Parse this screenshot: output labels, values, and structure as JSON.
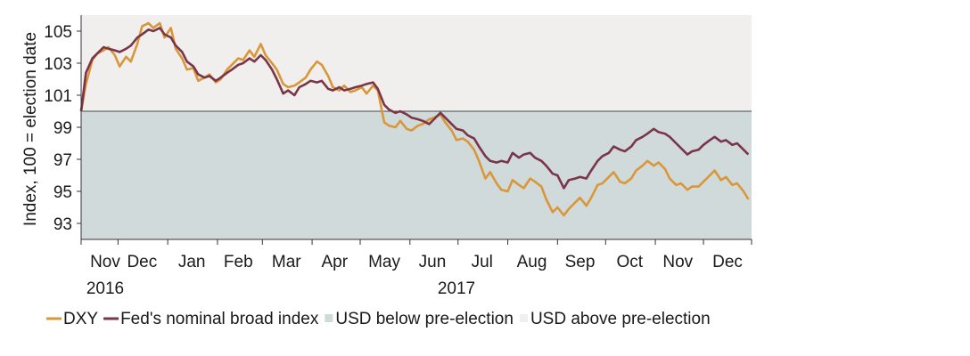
{
  "chart_data": {
    "type": "line",
    "ylabel": "Index, 100 = election date",
    "ylim": [
      92,
      106
    ],
    "yticks": [
      93,
      95,
      97,
      99,
      101,
      103,
      105
    ],
    "xlim": [
      "2016-11-08",
      "2017-12-31"
    ],
    "x_month_labels": [
      {
        "label": "Nov",
        "date": "2016-11-23"
      },
      {
        "label": "Dec",
        "date": "2016-12-16"
      },
      {
        "label": "Jan",
        "date": "2017-01-16"
      },
      {
        "label": "Feb",
        "date": "2017-02-14"
      },
      {
        "label": "Mar",
        "date": "2017-03-16"
      },
      {
        "label": "Apr",
        "date": "2017-04-15"
      },
      {
        "label": "May",
        "date": "2017-05-16"
      },
      {
        "label": "Jun",
        "date": "2017-06-15"
      },
      {
        "label": "Jul",
        "date": "2017-07-16"
      },
      {
        "label": "Aug",
        "date": "2017-08-16"
      },
      {
        "label": "Sep",
        "date": "2017-09-15"
      },
      {
        "label": "Oct",
        "date": "2017-10-16"
      },
      {
        "label": "Nov",
        "date": "2017-11-15"
      },
      {
        "label": "Dec",
        "date": "2017-12-16"
      }
    ],
    "x_year_labels": [
      {
        "label": "2016",
        "date": "2016-11-23"
      },
      {
        "label": "2017",
        "date": "2017-06-30"
      }
    ],
    "x_ticks": [
      "2016-11-08",
      "2016-12-01",
      "2017-01-01",
      "2017-02-01",
      "2017-03-01",
      "2017-04-01",
      "2017-05-01",
      "2017-06-01",
      "2017-07-01",
      "2017-08-01",
      "2017-09-01",
      "2017-10-01",
      "2017-11-01",
      "2017-12-01",
      "2017-12-31"
    ],
    "shading": [
      {
        "name": "USD below pre-election",
        "from": 92,
        "to": 100,
        "color": "#d0dadb"
      },
      {
        "name": "USD above pre-election",
        "from": 100,
        "to": 106,
        "color": "#f0efed"
      }
    ],
    "series": [
      {
        "name": "DXY",
        "color": "#d9973a",
        "points": [
          [
            "2016-11-08",
            100.0
          ],
          [
            "2016-11-11",
            101.7
          ],
          [
            "2016-11-15",
            103.2
          ],
          [
            "2016-11-18",
            103.6
          ],
          [
            "2016-11-22",
            103.8
          ],
          [
            "2016-11-25",
            104.0
          ],
          [
            "2016-11-29",
            103.5
          ],
          [
            "2016-12-02",
            102.8
          ],
          [
            "2016-12-06",
            103.4
          ],
          [
            "2016-12-09",
            103.1
          ],
          [
            "2016-12-13",
            104.2
          ],
          [
            "2016-12-16",
            105.3
          ],
          [
            "2016-12-20",
            105.5
          ],
          [
            "2016-12-23",
            105.2
          ],
          [
            "2016-12-27",
            105.5
          ],
          [
            "2016-12-30",
            104.6
          ],
          [
            "2017-01-03",
            105.2
          ],
          [
            "2017-01-06",
            103.9
          ],
          [
            "2017-01-10",
            103.3
          ],
          [
            "2017-01-13",
            102.6
          ],
          [
            "2017-01-17",
            102.7
          ],
          [
            "2017-01-20",
            101.9
          ],
          [
            "2017-01-24",
            102.1
          ],
          [
            "2017-01-27",
            102.3
          ],
          [
            "2017-01-31",
            101.8
          ],
          [
            "2017-02-03",
            102.0
          ],
          [
            "2017-02-07",
            102.6
          ],
          [
            "2017-02-10",
            102.9
          ],
          [
            "2017-02-14",
            103.3
          ],
          [
            "2017-02-17",
            103.2
          ],
          [
            "2017-02-21",
            103.8
          ],
          [
            "2017-02-24",
            103.4
          ],
          [
            "2017-02-28",
            104.2
          ],
          [
            "2017-03-03",
            103.5
          ],
          [
            "2017-03-07",
            103.0
          ],
          [
            "2017-03-10",
            102.6
          ],
          [
            "2017-03-14",
            101.7
          ],
          [
            "2017-03-17",
            101.5
          ],
          [
            "2017-03-21",
            101.6
          ],
          [
            "2017-03-24",
            101.8
          ],
          [
            "2017-03-28",
            102.1
          ],
          [
            "2017-03-31",
            102.6
          ],
          [
            "2017-04-04",
            103.1
          ],
          [
            "2017-04-07",
            102.9
          ],
          [
            "2017-04-11",
            102.2
          ],
          [
            "2017-04-14",
            101.5
          ],
          [
            "2017-04-18",
            101.3
          ],
          [
            "2017-04-21",
            101.6
          ],
          [
            "2017-04-25",
            101.2
          ],
          [
            "2017-04-28",
            101.3
          ],
          [
            "2017-05-02",
            101.5
          ],
          [
            "2017-05-05",
            101.1
          ],
          [
            "2017-05-09",
            101.6
          ],
          [
            "2017-05-12",
            101.3
          ],
          [
            "2017-05-16",
            99.3
          ],
          [
            "2017-05-19",
            99.1
          ],
          [
            "2017-05-23",
            99.0
          ],
          [
            "2017-05-26",
            99.4
          ],
          [
            "2017-05-30",
            98.9
          ],
          [
            "2017-06-02",
            98.8
          ],
          [
            "2017-06-06",
            99.1
          ],
          [
            "2017-06-09",
            99.2
          ],
          [
            "2017-06-13",
            99.5
          ],
          [
            "2017-06-16",
            99.6
          ],
          [
            "2017-06-20",
            99.8
          ],
          [
            "2017-06-23",
            99.3
          ],
          [
            "2017-06-27",
            98.8
          ],
          [
            "2017-06-30",
            98.2
          ],
          [
            "2017-07-04",
            98.3
          ],
          [
            "2017-07-07",
            98.1
          ],
          [
            "2017-07-11",
            97.6
          ],
          [
            "2017-07-14",
            96.9
          ],
          [
            "2017-07-18",
            95.8
          ],
          [
            "2017-07-21",
            96.2
          ],
          [
            "2017-07-25",
            95.5
          ],
          [
            "2017-07-28",
            95.1
          ],
          [
            "2017-08-01",
            95.0
          ],
          [
            "2017-08-04",
            95.7
          ],
          [
            "2017-08-08",
            95.4
          ],
          [
            "2017-08-11",
            95.2
          ],
          [
            "2017-08-15",
            95.8
          ],
          [
            "2017-08-18",
            95.6
          ],
          [
            "2017-08-22",
            95.3
          ],
          [
            "2017-08-25",
            94.5
          ],
          [
            "2017-08-29",
            93.7
          ],
          [
            "2017-09-01",
            94.0
          ],
          [
            "2017-09-05",
            93.5
          ],
          [
            "2017-09-08",
            93.9
          ],
          [
            "2017-09-12",
            94.3
          ],
          [
            "2017-09-15",
            94.6
          ],
          [
            "2017-09-19",
            94.1
          ],
          [
            "2017-09-22",
            94.6
          ],
          [
            "2017-09-26",
            95.4
          ],
          [
            "2017-09-29",
            95.5
          ],
          [
            "2017-10-03",
            95.9
          ],
          [
            "2017-10-06",
            96.2
          ],
          [
            "2017-10-10",
            95.6
          ],
          [
            "2017-10-13",
            95.5
          ],
          [
            "2017-10-17",
            95.8
          ],
          [
            "2017-10-20",
            96.3
          ],
          [
            "2017-10-24",
            96.6
          ],
          [
            "2017-10-27",
            96.9
          ],
          [
            "2017-10-31",
            96.6
          ],
          [
            "2017-11-03",
            96.8
          ],
          [
            "2017-11-07",
            96.4
          ],
          [
            "2017-11-10",
            95.8
          ],
          [
            "2017-11-14",
            95.4
          ],
          [
            "2017-11-17",
            95.5
          ],
          [
            "2017-11-21",
            95.1
          ],
          [
            "2017-11-24",
            95.3
          ],
          [
            "2017-11-28",
            95.3
          ],
          [
            "2017-12-01",
            95.6
          ],
          [
            "2017-12-05",
            96.0
          ],
          [
            "2017-12-08",
            96.3
          ],
          [
            "2017-12-12",
            95.7
          ],
          [
            "2017-12-15",
            95.9
          ],
          [
            "2017-12-19",
            95.4
          ],
          [
            "2017-12-22",
            95.5
          ],
          [
            "2017-12-26",
            95.0
          ],
          [
            "2017-12-29",
            94.5
          ]
        ]
      },
      {
        "name": "Fed's nominal broad index",
        "color": "#7a3549",
        "points": [
          [
            "2016-11-08",
            100.0
          ],
          [
            "2016-11-11",
            102.4
          ],
          [
            "2016-11-15",
            103.3
          ],
          [
            "2016-11-18",
            103.6
          ],
          [
            "2016-11-22",
            104.0
          ],
          [
            "2016-11-25",
            103.9
          ],
          [
            "2016-11-29",
            103.8
          ],
          [
            "2016-12-02",
            103.7
          ],
          [
            "2016-12-06",
            103.9
          ],
          [
            "2016-12-09",
            104.1
          ],
          [
            "2016-12-13",
            104.6
          ],
          [
            "2016-12-16",
            104.8
          ],
          [
            "2016-12-20",
            105.1
          ],
          [
            "2016-12-23",
            105.0
          ],
          [
            "2016-12-27",
            105.2
          ],
          [
            "2016-12-30",
            104.8
          ],
          [
            "2017-01-03",
            104.6
          ],
          [
            "2017-01-06",
            104.1
          ],
          [
            "2017-01-10",
            103.7
          ],
          [
            "2017-01-13",
            103.1
          ],
          [
            "2017-01-17",
            102.8
          ],
          [
            "2017-01-20",
            102.3
          ],
          [
            "2017-01-24",
            102.1
          ],
          [
            "2017-01-27",
            102.2
          ],
          [
            "2017-01-31",
            101.9
          ],
          [
            "2017-02-03",
            102.1
          ],
          [
            "2017-02-07",
            102.4
          ],
          [
            "2017-02-10",
            102.6
          ],
          [
            "2017-02-14",
            102.9
          ],
          [
            "2017-02-17",
            103.0
          ],
          [
            "2017-02-21",
            103.3
          ],
          [
            "2017-02-24",
            103.1
          ],
          [
            "2017-02-28",
            103.5
          ],
          [
            "2017-03-03",
            103.2
          ],
          [
            "2017-03-07",
            102.6
          ],
          [
            "2017-03-10",
            102.0
          ],
          [
            "2017-03-14",
            101.1
          ],
          [
            "2017-03-17",
            101.3
          ],
          [
            "2017-03-21",
            101.0
          ],
          [
            "2017-03-24",
            101.5
          ],
          [
            "2017-03-28",
            101.7
          ],
          [
            "2017-03-31",
            101.9
          ],
          [
            "2017-04-04",
            101.8
          ],
          [
            "2017-04-07",
            101.9
          ],
          [
            "2017-04-11",
            101.4
          ],
          [
            "2017-04-14",
            101.3
          ],
          [
            "2017-04-18",
            101.5
          ],
          [
            "2017-04-21",
            101.3
          ],
          [
            "2017-04-25",
            101.4
          ],
          [
            "2017-04-28",
            101.5
          ],
          [
            "2017-05-02",
            101.6
          ],
          [
            "2017-05-05",
            101.7
          ],
          [
            "2017-05-09",
            101.8
          ],
          [
            "2017-05-12",
            101.4
          ],
          [
            "2017-05-16",
            100.4
          ],
          [
            "2017-05-19",
            100.1
          ],
          [
            "2017-05-23",
            99.9
          ],
          [
            "2017-05-26",
            100.0
          ],
          [
            "2017-05-30",
            99.8
          ],
          [
            "2017-06-02",
            99.6
          ],
          [
            "2017-06-06",
            99.5
          ],
          [
            "2017-06-09",
            99.4
          ],
          [
            "2017-06-13",
            99.2
          ],
          [
            "2017-06-16",
            99.5
          ],
          [
            "2017-06-20",
            99.9
          ],
          [
            "2017-06-23",
            99.6
          ],
          [
            "2017-06-27",
            99.2
          ],
          [
            "2017-06-30",
            98.9
          ],
          [
            "2017-07-04",
            98.8
          ],
          [
            "2017-07-07",
            98.5
          ],
          [
            "2017-07-11",
            98.3
          ],
          [
            "2017-07-14",
            97.8
          ],
          [
            "2017-07-18",
            97.2
          ],
          [
            "2017-07-21",
            96.9
          ],
          [
            "2017-07-25",
            96.8
          ],
          [
            "2017-07-28",
            96.9
          ],
          [
            "2017-08-01",
            96.8
          ],
          [
            "2017-08-04",
            97.4
          ],
          [
            "2017-08-08",
            97.1
          ],
          [
            "2017-08-11",
            97.3
          ],
          [
            "2017-08-15",
            97.4
          ],
          [
            "2017-08-18",
            97.1
          ],
          [
            "2017-08-22",
            96.9
          ],
          [
            "2017-08-25",
            96.6
          ],
          [
            "2017-08-29",
            96.1
          ],
          [
            "2017-09-01",
            96.0
          ],
          [
            "2017-09-05",
            95.2
          ],
          [
            "2017-09-08",
            95.7
          ],
          [
            "2017-09-12",
            95.8
          ],
          [
            "2017-09-15",
            95.9
          ],
          [
            "2017-09-19",
            95.8
          ],
          [
            "2017-09-22",
            96.3
          ],
          [
            "2017-09-26",
            96.9
          ],
          [
            "2017-09-29",
            97.2
          ],
          [
            "2017-10-03",
            97.4
          ],
          [
            "2017-10-06",
            97.8
          ],
          [
            "2017-10-10",
            97.6
          ],
          [
            "2017-10-13",
            97.5
          ],
          [
            "2017-10-17",
            97.8
          ],
          [
            "2017-10-20",
            98.2
          ],
          [
            "2017-10-24",
            98.4
          ],
          [
            "2017-10-27",
            98.6
          ],
          [
            "2017-10-31",
            98.9
          ],
          [
            "2017-11-03",
            98.7
          ],
          [
            "2017-11-07",
            98.6
          ],
          [
            "2017-11-10",
            98.4
          ],
          [
            "2017-11-14",
            98.0
          ],
          [
            "2017-11-17",
            97.7
          ],
          [
            "2017-11-21",
            97.3
          ],
          [
            "2017-11-24",
            97.5
          ],
          [
            "2017-11-28",
            97.6
          ],
          [
            "2017-12-01",
            97.9
          ],
          [
            "2017-12-05",
            98.2
          ],
          [
            "2017-12-08",
            98.4
          ],
          [
            "2017-12-12",
            98.1
          ],
          [
            "2017-12-15",
            98.2
          ],
          [
            "2017-12-19",
            97.9
          ],
          [
            "2017-12-22",
            98.0
          ],
          [
            "2017-12-26",
            97.6
          ],
          [
            "2017-12-29",
            97.3
          ]
        ]
      }
    ],
    "legend": {
      "placement": "bottom",
      "items": [
        {
          "label": "DXY",
          "kind": "line",
          "color": "#d9973a"
        },
        {
          "label": "Fed's nominal broad index",
          "kind": "line",
          "color": "#7a3549"
        },
        {
          "label": "USD below pre-election",
          "kind": "box",
          "color": "#d0dadb"
        },
        {
          "label": "USD above pre-election",
          "kind": "box",
          "color": "#f0efed"
        }
      ]
    },
    "grid": false
  }
}
